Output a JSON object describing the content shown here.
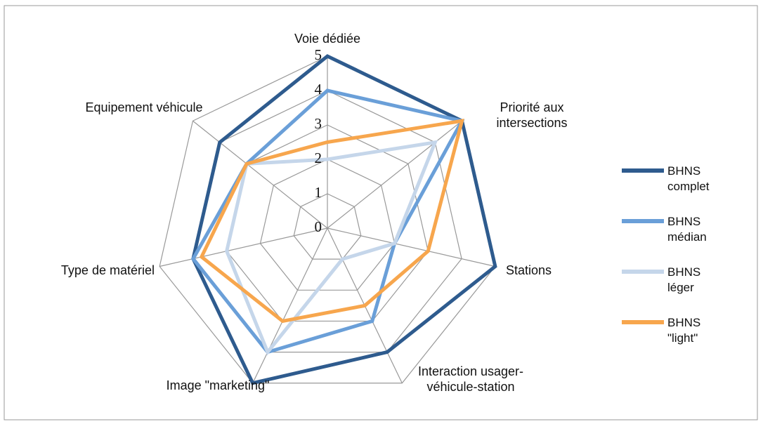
{
  "chart_data": {
    "type": "radar",
    "categories": [
      "Voie dédiée",
      "Priorité aux intersections",
      "Stations",
      "Interaction usager-véhicule-station",
      "Image \"marketing\"",
      "Type de matériel",
      "Equipement véhicule"
    ],
    "series": [
      {
        "name": "BHNS complet",
        "color": "#2e5b8e",
        "values": [
          5,
          5,
          5,
          4,
          5,
          4,
          4
        ]
      },
      {
        "name": "BHNS médian",
        "color": "#6a9fd8",
        "values": [
          4,
          5,
          2,
          3,
          4,
          4,
          3
        ]
      },
      {
        "name": "BHNS léger",
        "color": "#c5d6ea",
        "values": [
          2,
          4,
          2,
          1,
          4,
          3,
          3
        ]
      },
      {
        "name": "BHNS \"light\"",
        "color": "#f7a64d",
        "values": [
          2.5,
          5,
          3,
          2.5,
          3,
          3.75,
          3
        ]
      }
    ],
    "ylim": [
      0,
      5
    ],
    "yticks": [
      0,
      1,
      2,
      3,
      4,
      5
    ],
    "grid": true,
    "legend": "right"
  }
}
